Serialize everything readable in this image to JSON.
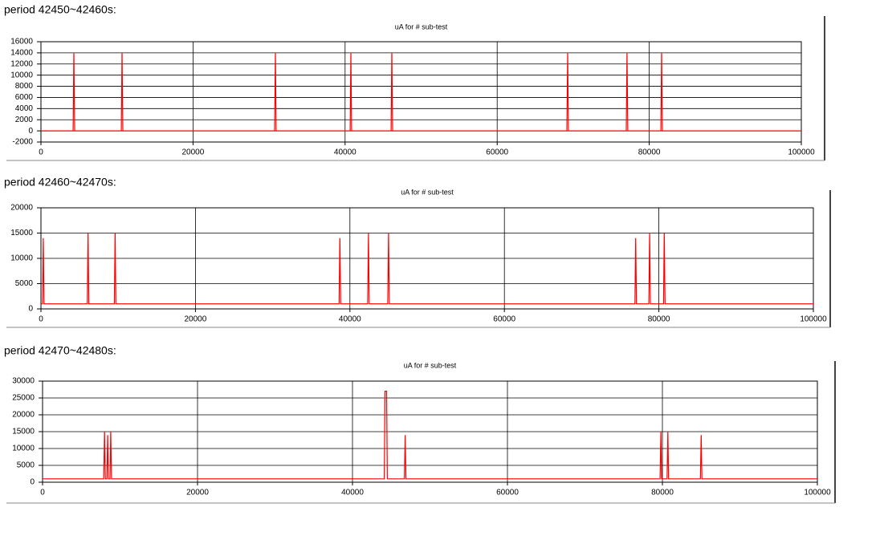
{
  "chart_data": [
    {
      "type": "line",
      "subtitle": "period 42450~42460s:",
      "title": "uA for # sub-test",
      "xlim": [
        0,
        100000
      ],
      "xticks": [
        0,
        20000,
        40000,
        60000,
        80000,
        100000
      ],
      "ylim": [
        -2000,
        16000
      ],
      "yticks": [
        -2000,
        0,
        2000,
        4000,
        6000,
        8000,
        10000,
        12000,
        14000,
        16000
      ],
      "grid": true,
      "series": [
        {
          "color": "#ff0000",
          "x": [
            0,
            4230,
            4330,
            4430,
            10570,
            10670,
            10770,
            30730,
            30830,
            30930,
            40660,
            40760,
            40860,
            46050,
            46150,
            46250,
            69170,
            69270,
            69370,
            76980,
            77080,
            77180,
            81530,
            81630,
            81730,
            100000
          ],
          "values": [
            0,
            0,
            14000,
            0,
            0,
            14000,
            0,
            0,
            14000,
            0,
            0,
            14000,
            0,
            0,
            14000,
            0,
            0,
            14000,
            0,
            0,
            14000,
            0,
            0,
            14000,
            0,
            0
          ]
        }
      ]
    },
    {
      "type": "line",
      "subtitle": "period 42460~42470s:",
      "title": "uA for # sub-test",
      "xlim": [
        0,
        100000
      ],
      "xticks": [
        0,
        20000,
        40000,
        60000,
        80000,
        100000
      ],
      "ylim": [
        0,
        20000
      ],
      "yticks": [
        0,
        5000,
        10000,
        15000,
        20000
      ],
      "grid": true,
      "series": [
        {
          "color": "#ff0000",
          "x": [
            0,
            200,
            300,
            400,
            6000,
            6100,
            6200,
            9500,
            9600,
            9700,
            38600,
            38700,
            38800,
            42300,
            42400,
            42500,
            44900,
            45000,
            45100,
            76900,
            77000,
            77100,
            78700,
            78800,
            78900,
            80600,
            80700,
            80800,
            100000
          ],
          "values": [
            1000,
            1000,
            14000,
            1000,
            1000,
            15000,
            1000,
            1000,
            15000,
            1000,
            1000,
            14000,
            1000,
            1000,
            15000,
            1000,
            1000,
            15000,
            1000,
            1000,
            14000,
            1000,
            1000,
            15000,
            1000,
            1000,
            15000,
            1000,
            1000
          ]
        }
      ]
    },
    {
      "type": "line",
      "subtitle": "period 42470~42480s:",
      "title": "uA for # sub-test",
      "xlim": [
        0,
        100000
      ],
      "xticks": [
        0,
        20000,
        40000,
        60000,
        80000,
        100000
      ],
      "ylim": [
        0,
        30000
      ],
      "yticks": [
        0,
        5000,
        10000,
        15000,
        20000,
        25000,
        30000
      ],
      "grid": true,
      "series": [
        {
          "color": "#ff0000",
          "x": [
            0,
            7900,
            8000,
            8100,
            8300,
            8400,
            8500,
            8700,
            8800,
            8900,
            44100,
            44200,
            44400,
            44500,
            46700,
            46800,
            46900,
            79700,
            79800,
            79900,
            80600,
            80700,
            80800,
            84900,
            85000,
            85100,
            100000
          ],
          "values": [
            1000,
            1000,
            15000,
            1000,
            1000,
            14000,
            1000,
            1000,
            15000,
            1000,
            1000,
            27000,
            27000,
            1000,
            1000,
            14000,
            1000,
            1000,
            15000,
            1000,
            1000,
            15000,
            1000,
            1000,
            14000,
            1000,
            1000
          ]
        }
      ]
    }
  ]
}
